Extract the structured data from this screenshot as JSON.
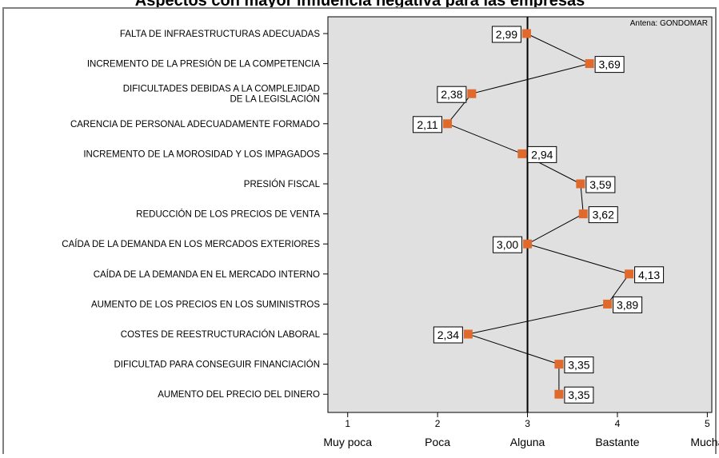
{
  "chart_data": {
    "type": "line",
    "title": "Aspectos con mayor influencia negativa para las empresas",
    "annotation": "Antena: GONDOMAR",
    "categories": [
      "FALTA DE INFRAESTRUCTURAS ADECUADAS",
      "INCREMENTO DE LA PRESIÓN DE LA COMPETENCIA",
      "DIFICULTADES DEBIDAS A LA COMPLEJIDAD DE LA LEGISLACIÓN",
      "CARENCIA DE PERSONAL ADECUADAMENTE FORMADO",
      "INCREMENTO DE LA MOROSIDAD Y LOS IMPAGADOS",
      "PRESIÓN FISCAL",
      "REDUCCIÓN DE LOS PRECIOS DE VENTA",
      "CAÍDA DE LA DEMANDA EN LOS MERCADOS EXTERIORES",
      "CAÍDA DE LA DEMANDA EN EL MERCADO INTERNO",
      "AUMENTO DE LOS PRECIOS EN LOS SUMINISTROS",
      "COSTES DE REESTRUCTURACIÓN LABORAL",
      "DIFICULTAD PARA CONSEGUIR FINANCIACIÓN",
      "AUMENTO DEL PRECIO DEL DINERO"
    ],
    "category_lines": [
      [
        "FALTA DE INFRAESTRUCTURAS ADECUADAS"
      ],
      [
        "INCREMENTO DE LA PRESIÓN DE LA COMPETENCIA"
      ],
      [
        "DIFICULTADES DEBIDAS A LA COMPLEJIDAD",
        "DE LA LEGISLACIÓN"
      ],
      [
        "CARENCIA DE PERSONAL ADECUADAMENTE FORMADO"
      ],
      [
        "INCREMENTO DE LA MOROSIDAD Y LOS IMPAGADOS"
      ],
      [
        "PRESIÓN FISCAL"
      ],
      [
        "REDUCCIÓN DE LOS PRECIOS DE VENTA"
      ],
      [
        "CAÍDA DE LA DEMANDA EN LOS MERCADOS EXTERIORES"
      ],
      [
        "CAÍDA DE LA DEMANDA EN EL MERCADO INTERNO"
      ],
      [
        "AUMENTO DE LOS PRECIOS EN LOS SUMINISTROS"
      ],
      [
        "COSTES DE REESTRUCTURACIÓN LABORAL"
      ],
      [
        "DIFICULTAD PARA CONSEGUIR FINANCIACIÓN"
      ],
      [
        "AUMENTO DEL PRECIO DEL DINERO"
      ]
    ],
    "series": [
      {
        "values": [
          2.99,
          3.69,
          2.38,
          2.11,
          2.94,
          3.59,
          3.62,
          3.0,
          4.13,
          3.89,
          2.34,
          3.35,
          3.35
        ],
        "labels": [
          "2,99",
          "3,69",
          "2,38",
          "2,11",
          "2,94",
          "3,59",
          "3,62",
          "3,00",
          "4,13",
          "3,89",
          "2,34",
          "3,35",
          "3,35"
        ],
        "label_side": [
          "left",
          "right",
          "left",
          "left",
          "right",
          "right",
          "right",
          "left",
          "right",
          "right",
          "left",
          "right",
          "right"
        ],
        "color": "#e06a2c"
      }
    ],
    "x_ticks": [
      1,
      2,
      3,
      4,
      5
    ],
    "x_tick_labels": [
      "Muy poca",
      "Poca",
      "Alguna",
      "Bastante",
      "Mucha"
    ],
    "xlim": [
      0.78,
      5.05
    ],
    "reference_line": 3,
    "xlabel": "",
    "ylabel": "",
    "grid": false,
    "legend": "none",
    "plot_background": "#e0e0e0",
    "frame_color": "#808080"
  }
}
